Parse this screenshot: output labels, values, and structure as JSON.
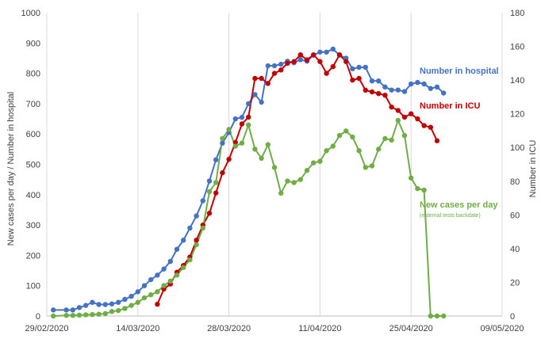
{
  "chart_data": {
    "type": "line",
    "x_ticks": [
      "29/02/2020",
      "14/03/2020",
      "28/03/2020",
      "11/04/2020",
      "25/04/2020",
      "09/05/2020"
    ],
    "xlim": [
      "2020-02-29",
      "2020-05-09"
    ],
    "ylim_left": [
      0,
      1000
    ],
    "ylim_right": [
      0,
      180
    ],
    "yticks_left": [
      "0",
      "100",
      "200",
      "300",
      "400",
      "500",
      "600",
      "700",
      "800",
      "900",
      "1000"
    ],
    "yticks_right": [
      "0",
      "20",
      "40",
      "60",
      "80",
      "100",
      "120",
      "140",
      "160",
      "180"
    ],
    "ylabel_left": "New cases per day / Number in hospital",
    "ylabel_right": "Number in ICU",
    "grid": "vertical",
    "series": [
      {
        "name": "Number in hospital",
        "axis": "left",
        "color": "#4472C4",
        "x": [
          "2020-03-01",
          "2020-03-03",
          "2020-03-04",
          "2020-03-05",
          "2020-03-06",
          "2020-03-07",
          "2020-03-08",
          "2020-03-09",
          "2020-03-10",
          "2020-03-11",
          "2020-03-12",
          "2020-03-13",
          "2020-03-14",
          "2020-03-15",
          "2020-03-16",
          "2020-03-17",
          "2020-03-18",
          "2020-03-19",
          "2020-03-20",
          "2020-03-21",
          "2020-03-22",
          "2020-03-23",
          "2020-03-24",
          "2020-03-25",
          "2020-03-26",
          "2020-03-27",
          "2020-03-28",
          "2020-03-29",
          "2020-03-30",
          "2020-03-31",
          "2020-04-01",
          "2020-04-02",
          "2020-04-03",
          "2020-04-04",
          "2020-04-05",
          "2020-04-06",
          "2020-04-07",
          "2020-04-08",
          "2020-04-09",
          "2020-04-10",
          "2020-04-11",
          "2020-04-12",
          "2020-04-13",
          "2020-04-14",
          "2020-04-15",
          "2020-04-16",
          "2020-04-17",
          "2020-04-18",
          "2020-04-19",
          "2020-04-20",
          "2020-04-21",
          "2020-04-22",
          "2020-04-23",
          "2020-04-24",
          "2020-04-25",
          "2020-04-26",
          "2020-04-27",
          "2020-04-28",
          "2020-04-29",
          "2020-04-30"
        ],
        "values": [
          20,
          20,
          20,
          28,
          35,
          45,
          38,
          38,
          40,
          45,
          55,
          65,
          80,
          100,
          120,
          135,
          155,
          180,
          220,
          250,
          290,
          330,
          380,
          445,
          515,
          570,
          605,
          650,
          655,
          700,
          730,
          705,
          825,
          825,
          830,
          840,
          835,
          845,
          840,
          860,
          870,
          870,
          880,
          860,
          850,
          815,
          820,
          820,
          775,
          775,
          755,
          745,
          745,
          740,
          765,
          770,
          765,
          750,
          755,
          735
        ]
      },
      {
        "name": "Number in ICU",
        "axis": "right",
        "color": "#C00000",
        "x": [
          "2020-03-17",
          "2020-03-18",
          "2020-03-19",
          "2020-03-20",
          "2020-03-21",
          "2020-03-22",
          "2020-03-23",
          "2020-03-24",
          "2020-03-25",
          "2020-03-26",
          "2020-03-27",
          "2020-03-28",
          "2020-03-29",
          "2020-03-30",
          "2020-03-31",
          "2020-04-01",
          "2020-04-02",
          "2020-04-03",
          "2020-04-04",
          "2020-04-05",
          "2020-04-06",
          "2020-04-07",
          "2020-04-08",
          "2020-04-09",
          "2020-04-10",
          "2020-04-11",
          "2020-04-12",
          "2020-04-13",
          "2020-04-14",
          "2020-04-15",
          "2020-04-16",
          "2020-04-17",
          "2020-04-18",
          "2020-04-19",
          "2020-04-20",
          "2020-04-21",
          "2020-04-22",
          "2020-04-23",
          "2020-04-24",
          "2020-04-25",
          "2020-04-26",
          "2020-04-27",
          "2020-04-28",
          "2020-04-29"
        ],
        "values": [
          7,
          16,
          19,
          26,
          30,
          35,
          45,
          54,
          61,
          73,
          85,
          93,
          103,
          114,
          118,
          141,
          141,
          138,
          144,
          146,
          150,
          151,
          155,
          152,
          155,
          151,
          144,
          148,
          155,
          151,
          140,
          141,
          134,
          133,
          132,
          131,
          124,
          122,
          118,
          120,
          117,
          113,
          112,
          104
        ]
      },
      {
        "name": "New cases per day",
        "note": "(external tests backdate)",
        "axis": "left",
        "color": "#70AD47",
        "x": [
          "2020-03-01",
          "2020-03-03",
          "2020-03-04",
          "2020-03-05",
          "2020-03-06",
          "2020-03-07",
          "2020-03-08",
          "2020-03-09",
          "2020-03-10",
          "2020-03-11",
          "2020-03-12",
          "2020-03-13",
          "2020-03-14",
          "2020-03-15",
          "2020-03-16",
          "2020-03-17",
          "2020-03-18",
          "2020-03-19",
          "2020-03-20",
          "2020-03-21",
          "2020-03-22",
          "2020-03-23",
          "2020-03-24",
          "2020-03-25",
          "2020-03-26",
          "2020-03-27",
          "2020-03-28",
          "2020-03-29",
          "2020-03-30",
          "2020-03-31",
          "2020-04-01",
          "2020-04-02",
          "2020-04-03",
          "2020-04-04",
          "2020-04-05",
          "2020-04-06",
          "2020-04-07",
          "2020-04-08",
          "2020-04-09",
          "2020-04-10",
          "2020-04-11",
          "2020-04-12",
          "2020-04-13",
          "2020-04-14",
          "2020-04-15",
          "2020-04-16",
          "2020-04-17",
          "2020-04-18",
          "2020-04-19",
          "2020-04-20",
          "2020-04-21",
          "2020-04-22",
          "2020-04-23",
          "2020-04-24",
          "2020-04-25",
          "2020-04-26",
          "2020-04-27",
          "2020-04-28",
          "2020-04-29",
          "2020-04-30"
        ],
        "values": [
          0,
          2,
          2,
          3,
          4,
          5,
          6,
          8,
          15,
          18,
          25,
          35,
          45,
          60,
          70,
          80,
          100,
          115,
          135,
          160,
          185,
          235,
          290,
          410,
          440,
          585,
          615,
          560,
          570,
          630,
          550,
          520,
          565,
          490,
          405,
          445,
          440,
          450,
          480,
          505,
          510,
          545,
          560,
          595,
          610,
          590,
          545,
          490,
          495,
          550,
          585,
          580,
          645,
          595,
          455,
          420,
          415,
          0,
          0,
          0
        ]
      }
    ]
  }
}
